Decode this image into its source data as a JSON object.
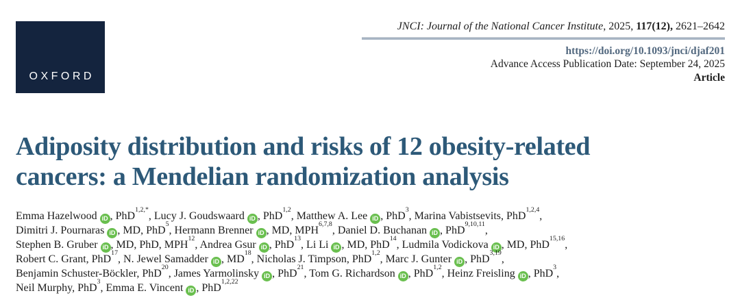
{
  "logo": {
    "text": "OXFORD"
  },
  "citation": {
    "journal_italic": "JNCI: Journal of the National Cancer Institute",
    "year_part": ", 2025, ",
    "volume_bold": "117(12),",
    "pages": " 2621–2642",
    "doi": "https://doi.org/10.1093/jnci/djaf201",
    "advance_access": "Advance Access Publication Date: September 24, 2025",
    "article_type": "Article"
  },
  "title": {
    "full": "Adiposity distribution and risks of 12 obesity-related cancers: a Mendelian randomization analysis",
    "line1": "Adiposity distribution and risks of 12 obesity-related",
    "line2": "cancers: a Mendelian randomization analysis"
  },
  "orcid_icon_label": "iD",
  "authors": [
    {
      "name": "Emma Hazelwood",
      "orcid": true,
      "creds": "PhD",
      "sup": "1,2,*",
      "br": false
    },
    {
      "name": "Lucy J. Goudswaard",
      "orcid": true,
      "creds": "PhD",
      "sup": "1,2",
      "br": false
    },
    {
      "name": "Matthew A. Lee",
      "orcid": true,
      "creds": "PhD",
      "sup": "3",
      "br": false
    },
    {
      "name": "Marina Vabistsevits",
      "orcid": false,
      "creds": "PhD",
      "sup": "1,2,4",
      "br": true
    },
    {
      "name": "Dimitri J. Pournaras",
      "orcid": true,
      "creds": "MD, PhD",
      "sup": "5",
      "br": false
    },
    {
      "name": "Hermann Brenner",
      "orcid": true,
      "creds": "MD, MPH",
      "sup": "6,7,8",
      "br": false
    },
    {
      "name": "Daniel D. Buchanan",
      "orcid": true,
      "creds": "PhD",
      "sup": "9,10,11",
      "br": true
    },
    {
      "name": "Stephen B. Gruber",
      "orcid": true,
      "creds": "MD, PhD, MPH",
      "sup": "12",
      "br": false
    },
    {
      "name": "Andrea Gsur",
      "orcid": true,
      "creds": "PhD",
      "sup": "13",
      "br": false
    },
    {
      "name": "Li Li",
      "orcid": true,
      "creds": "MD, PhD",
      "sup": "14",
      "br": false
    },
    {
      "name": "Ludmila Vodickova",
      "orcid": true,
      "creds": "MD, PhD",
      "sup": "15,16",
      "br": true
    },
    {
      "name": "Robert C. Grant",
      "orcid": false,
      "creds": "PhD",
      "sup": "17",
      "br": false
    },
    {
      "name": "N. Jewel Samadder",
      "orcid": true,
      "creds": "MD",
      "sup": "18",
      "br": false
    },
    {
      "name": "Nicholas J. Timpson",
      "orcid": false,
      "creds": "PhD",
      "sup": "1,2",
      "br": false
    },
    {
      "name": "Marc J. Gunter",
      "orcid": true,
      "creds": "PhD",
      "sup": "3,19",
      "br": true
    },
    {
      "name": "Benjamin Schuster-Böckler",
      "orcid": false,
      "creds": "PhD",
      "sup": "20",
      "br": false
    },
    {
      "name": "James Yarmolinsky",
      "orcid": true,
      "creds": "PhD",
      "sup": "21",
      "br": false
    },
    {
      "name": "Tom G. Richardson",
      "orcid": true,
      "creds": "PhD",
      "sup": "1,2",
      "br": false
    },
    {
      "name": "Heinz Freisling",
      "orcid": true,
      "creds": "PhD",
      "sup": "3",
      "br": true
    },
    {
      "name": "Neil Murphy",
      "orcid": false,
      "creds": "PhD",
      "sup": "3",
      "br": false
    },
    {
      "name": "Emma E. Vincent",
      "orcid": true,
      "creds": "PhD",
      "sup": "1,2,22",
      "br": false
    }
  ],
  "colors": {
    "navy": "#14243e",
    "title_blue": "#2d5978",
    "orcid_green": "#6abf4f",
    "doi_blue": "#51677e",
    "rule": "#a7b4c3"
  }
}
